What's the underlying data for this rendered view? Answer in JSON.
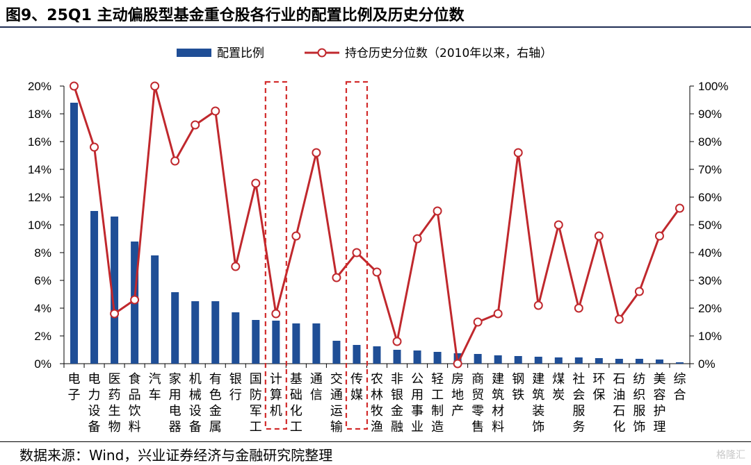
{
  "title": "图9、25Q1 主动偏股型基金重仓股各行业的配置比例及历史分位数",
  "source": "数据来源：Wind，兴业证券经济与金融研究院整理",
  "watermark": "格隆汇",
  "colors": {
    "bar": "#1f4e96",
    "line": "#c0282d",
    "highlight": "#d22b2b",
    "rule": "#1f2d54"
  },
  "chart_data": {
    "type": "bar",
    "categories": [
      "电子",
      "电力设备",
      "医药生物",
      "食品饮料",
      "汽车",
      "家用电器",
      "机械设备",
      "有色金属",
      "银行",
      "国防军工",
      "计算机",
      "基础化工",
      "通信",
      "交通运输",
      "传媒",
      "农林牧渔",
      "非银金融",
      "公用事业",
      "轻工制造",
      "房地产",
      "商贸零售",
      "建筑材料",
      "钢铁",
      "建筑装饰",
      "煤炭",
      "社会服务",
      "环保",
      "石油石化",
      "纺织服饰",
      "美容护理",
      "综合"
    ],
    "series": [
      {
        "name": "配置比例",
        "axis": "left",
        "kind": "bar",
        "values": [
          18.8,
          11.0,
          10.6,
          8.8,
          7.8,
          5.15,
          4.5,
          4.5,
          3.7,
          3.15,
          3.1,
          2.9,
          2.9,
          1.65,
          1.35,
          1.25,
          1.0,
          0.95,
          0.85,
          0.75,
          0.7,
          0.6,
          0.55,
          0.5,
          0.45,
          0.45,
          0.4,
          0.35,
          0.35,
          0.3,
          0.1
        ]
      },
      {
        "name": "持仓历史分位数（2010年以来，右轴）",
        "axis": "right",
        "kind": "line",
        "values": [
          100,
          78,
          18,
          23,
          100,
          73,
          86,
          91,
          35,
          65,
          18,
          46,
          76,
          31,
          40,
          33,
          8,
          45,
          55,
          0,
          15,
          18,
          76,
          21,
          50,
          20,
          46,
          16,
          26,
          46,
          56
        ]
      }
    ],
    "y_left": {
      "min": 0,
      "max": 20,
      "step": 2,
      "tick_labels": [
        "0%",
        "2%",
        "4%",
        "6%",
        "8%",
        "10%",
        "12%",
        "14%",
        "16%",
        "18%",
        "20%"
      ]
    },
    "y_right": {
      "min": 0,
      "max": 100,
      "step": 10,
      "tick_labels": [
        "0%",
        "10%",
        "20%",
        "30%",
        "40%",
        "50%",
        "60%",
        "70%",
        "80%",
        "90%",
        "100%"
      ]
    },
    "highlighted_categories": [
      "计算机",
      "传媒"
    ],
    "legend_position": "top-center",
    "grid": false
  }
}
